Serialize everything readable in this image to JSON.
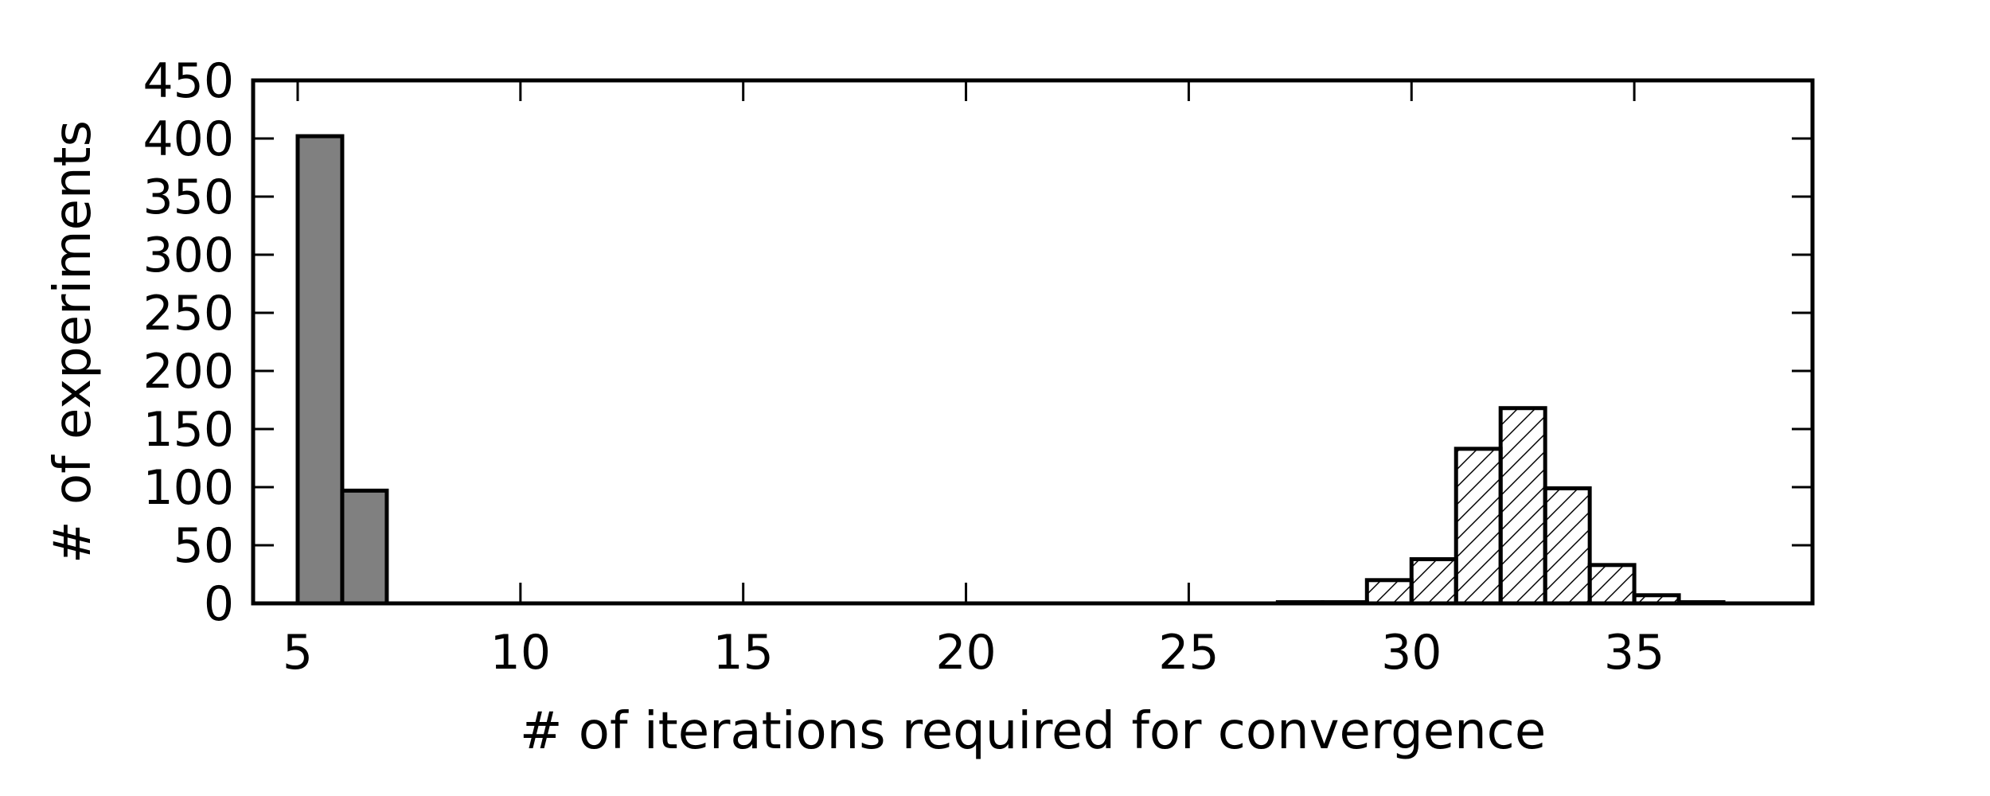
{
  "chart_data": {
    "type": "bar",
    "title": "",
    "xlabel": "# of iterations required for convergence",
    "ylabel": "# of experiments",
    "xlim": [
      4,
      39
    ],
    "ylim": [
      0,
      450
    ],
    "xticks": [
      5,
      10,
      15,
      20,
      25,
      30,
      35
    ],
    "yticks": [
      0,
      50,
      100,
      150,
      200,
      250,
      300,
      350,
      400,
      450
    ],
    "grid": false,
    "legend": "none",
    "bin_width": 1,
    "series": [
      {
        "style": "solid-gray",
        "color": "#808080",
        "bins": [
          {
            "x": 5,
            "value": 402
          },
          {
            "x": 6,
            "value": 97
          }
        ]
      },
      {
        "style": "hatched",
        "color": "#ffffff",
        "bins": [
          {
            "x": 27,
            "value": 1
          },
          {
            "x": 28,
            "value": 1
          },
          {
            "x": 29,
            "value": 20
          },
          {
            "x": 30,
            "value": 38
          },
          {
            "x": 31,
            "value": 133
          },
          {
            "x": 32,
            "value": 168
          },
          {
            "x": 33,
            "value": 99
          },
          {
            "x": 34,
            "value": 33
          },
          {
            "x": 35,
            "value": 7
          },
          {
            "x": 36,
            "value": 1
          }
        ]
      }
    ]
  }
}
